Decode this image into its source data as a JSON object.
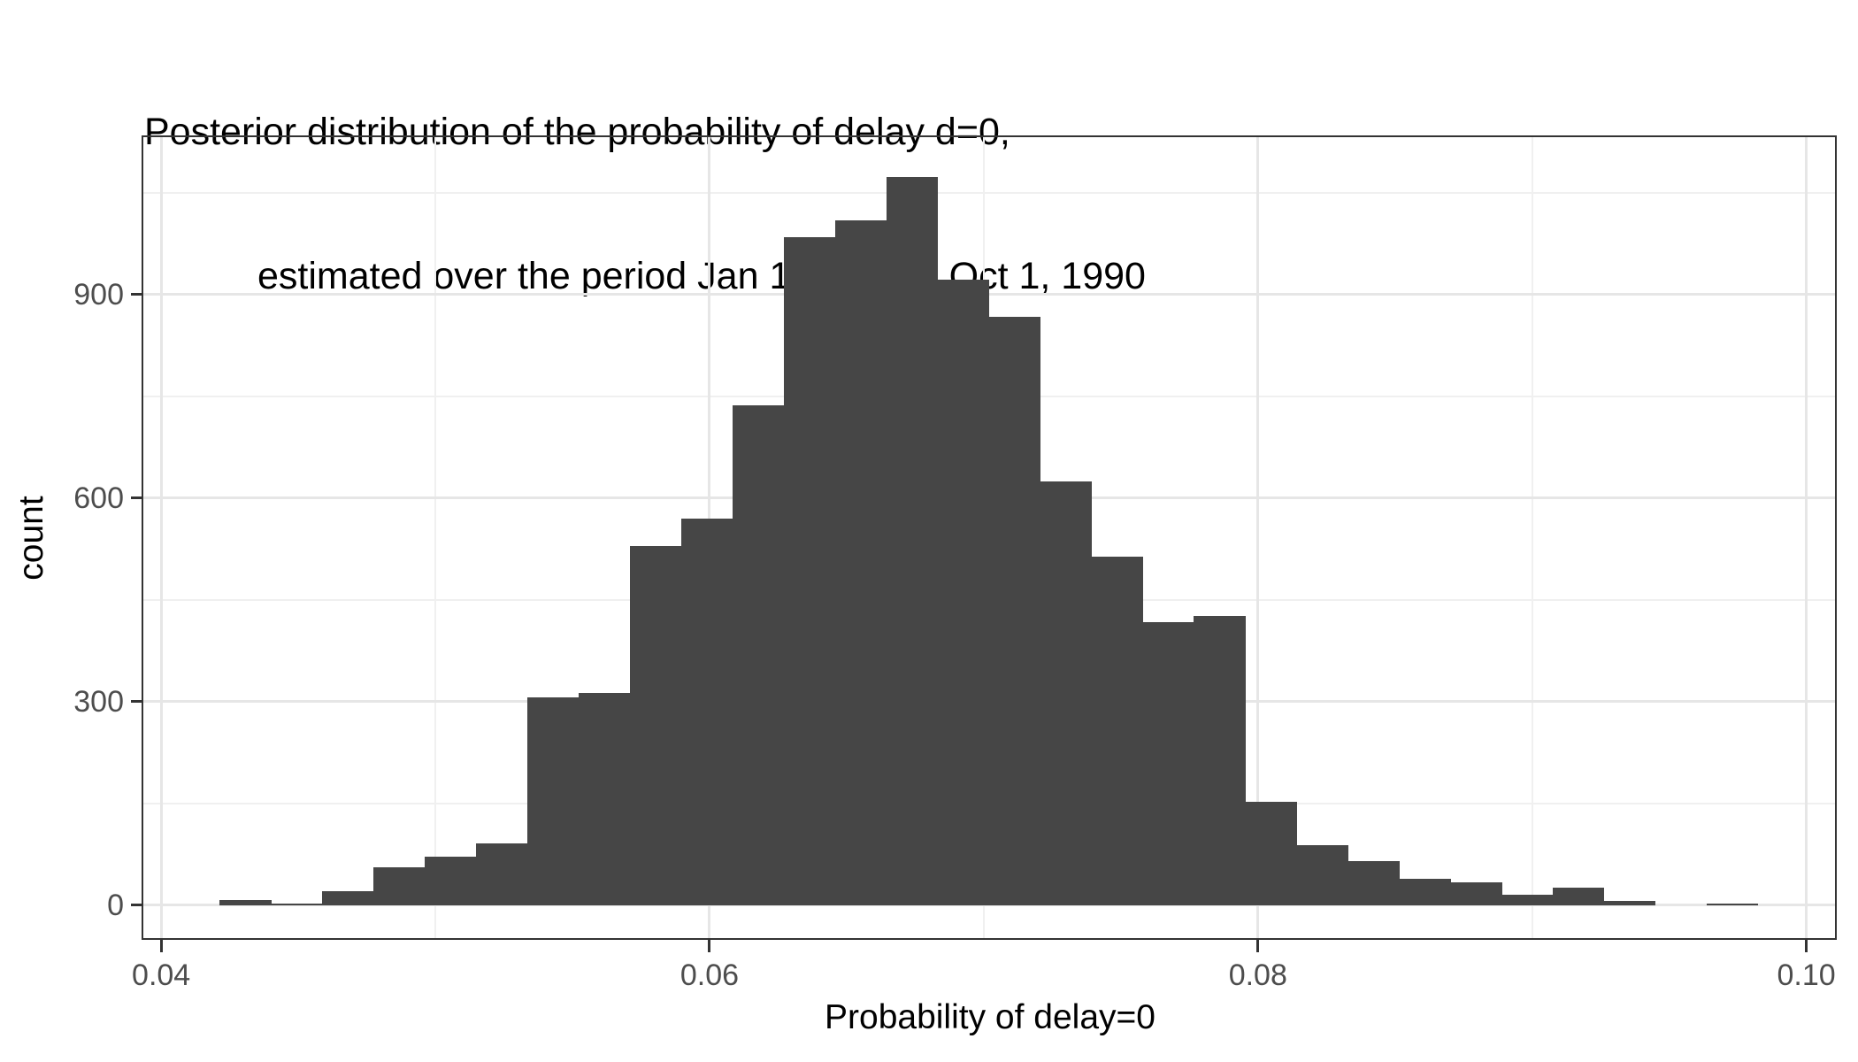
{
  "title": {
    "line1": "Posterior distribution of the probability of delay d=0,",
    "line2": "estimated over the period Jan 1, 1990 to Oct 1, 1990"
  },
  "chart_data": {
    "type": "bar",
    "subtype": "histogram",
    "title": "Posterior distribution of the probability of delay d=0, estimated over the period Jan 1, 1990 to Oct 1, 1990",
    "xlabel": "Probability of delay=0",
    "ylabel": "count",
    "bar_color": "#464646",
    "grid": true,
    "legend": false,
    "bin_start": 0.04213,
    "bin_width": 0.00187,
    "counts": [
      8,
      2,
      21,
      56,
      72,
      91,
      307,
      313,
      529,
      570,
      737,
      985,
      1010,
      1073,
      922,
      867,
      625,
      514,
      417,
      427,
      152,
      89,
      65,
      39,
      34,
      16,
      26,
      7,
      0,
      3
    ],
    "x_axis": {
      "range": [
        0.03935,
        0.10111
      ],
      "major_ticks": [
        {
          "value": 0.04,
          "label": "0.04"
        },
        {
          "value": 0.06,
          "label": "0.06"
        },
        {
          "value": 0.08,
          "label": "0.08"
        },
        {
          "value": 0.1,
          "label": "0.10"
        }
      ],
      "minor_gridlines": [
        0.05,
        0.07,
        0.09
      ]
    },
    "y_axis": {
      "range": [
        -51,
        1132
      ],
      "major_ticks": [
        {
          "value": 0,
          "label": "0"
        },
        {
          "value": 300,
          "label": "300"
        },
        {
          "value": 600,
          "label": "600"
        },
        {
          "value": 900,
          "label": "900"
        }
      ],
      "minor_gridlines": [
        150,
        450,
        750,
        1050
      ]
    },
    "colors": {
      "bar": "#464646",
      "panel_border": "#333333",
      "grid_major": "#e6e6e6",
      "grid_minor": "#f0f0f0",
      "tick_label": "#4d4d4d",
      "text": "#000000",
      "background": "#ffffff"
    }
  }
}
